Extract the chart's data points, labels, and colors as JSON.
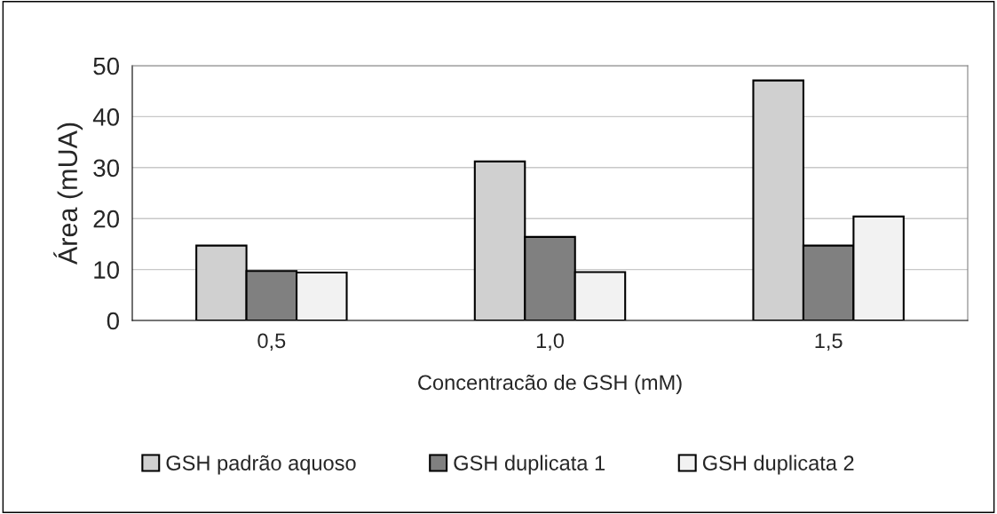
{
  "chart_data": {
    "type": "bar",
    "xlabel": "Concentracão de GSH (mM)",
    "ylabel": "Área (mUA)",
    "categories": [
      "0,5",
      "1,0",
      "1,5"
    ],
    "series": [
      {
        "name": "GSH padrão aquoso",
        "color": "#d0d0d0",
        "values": [
          14.7,
          31.2,
          47.1
        ]
      },
      {
        "name": "GSH duplicata 1",
        "color": "#808080",
        "values": [
          9.7,
          16.4,
          14.7
        ]
      },
      {
        "name": "GSH duplicata 2",
        "color": "#f2f2f2",
        "values": [
          9.4,
          9.5,
          20.4
        ]
      }
    ],
    "ylim": [
      0,
      50
    ],
    "yticks": [
      0,
      10,
      20,
      30,
      40,
      50
    ],
    "grid": "y",
    "legend": "bottom"
  }
}
